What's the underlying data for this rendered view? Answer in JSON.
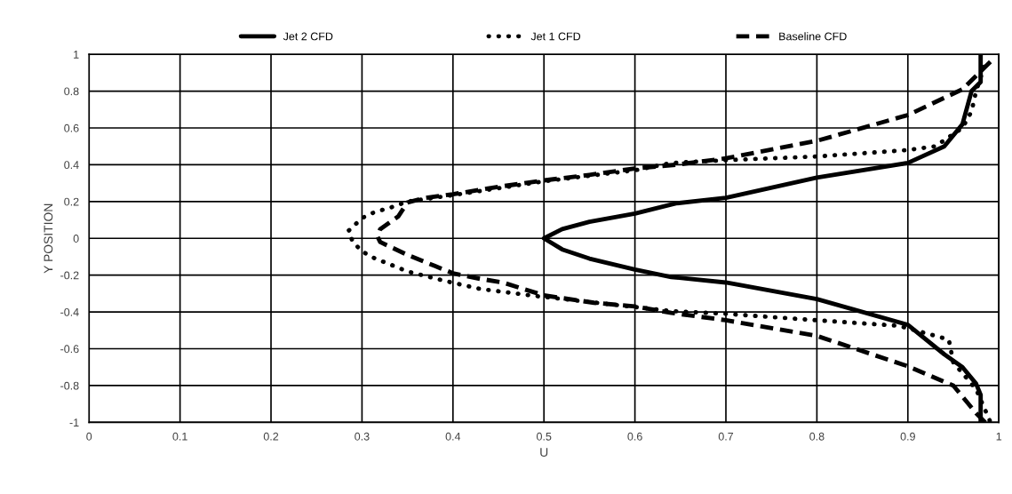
{
  "chart_data": {
    "type": "line",
    "xlabel": "U",
    "ylabel": "Y POSITION",
    "xlim": [
      0,
      1
    ],
    "ylim": [
      -1,
      1
    ],
    "xticks": [
      0,
      0.1,
      0.2,
      0.3,
      0.4,
      0.5,
      0.6,
      0.7,
      0.8,
      0.9,
      1
    ],
    "yticks": [
      -1,
      -0.8,
      -0.6,
      -0.4,
      -0.2,
      0,
      0.2,
      0.4,
      0.6,
      0.8,
      1
    ],
    "grid": true,
    "legend": "top",
    "marker": "none",
    "series": [
      {
        "name": "Jet 2 CFD",
        "color": "#000000",
        "line_style": "solid",
        "x": [
          0.98,
          0.98,
          0.975,
          0.96,
          0.94,
          0.9,
          0.8,
          0.7,
          0.64,
          0.6,
          0.55,
          0.52,
          0.5,
          0.52,
          0.55,
          0.6,
          0.645,
          0.7,
          0.8,
          0.9,
          0.94,
          0.96,
          0.97,
          0.98,
          0.98
        ],
        "values": [
          -1,
          -0.85,
          -0.79,
          -0.7,
          -0.63,
          -0.47,
          -0.33,
          -0.24,
          -0.21,
          -0.17,
          -0.11,
          -0.06,
          0,
          0.05,
          0.09,
          0.135,
          0.19,
          0.22,
          0.33,
          0.41,
          0.5,
          0.62,
          0.8,
          0.85,
          1
        ]
      },
      {
        "name": "Jet 1 CFD",
        "color": "#000000",
        "line_style": "dotted",
        "x": [
          0.99,
          0.975,
          0.95,
          0.945,
          0.89,
          0.8,
          0.7,
          0.64,
          0.485,
          0.47,
          0.43,
          0.39,
          0.35,
          0.31,
          0.3,
          0.29,
          0.285,
          0.3,
          0.315,
          0.33,
          0.35,
          0.4,
          0.5,
          0.6,
          0.64,
          0.7,
          0.8,
          0.9,
          0.93,
          0.96,
          0.97,
          0.975,
          0.985
        ],
        "values": [
          -0.99,
          -0.82,
          -0.675,
          -0.55,
          -0.475,
          -0.445,
          -0.41,
          -0.395,
          -0.31,
          -0.3,
          -0.275,
          -0.23,
          -0.18,
          -0.1,
          -0.07,
          -0.02,
          0.04,
          0.11,
          0.145,
          0.165,
          0.2,
          0.235,
          0.31,
          0.37,
          0.41,
          0.425,
          0.445,
          0.48,
          0.5,
          0.6,
          0.69,
          0.8,
          0.95
        ]
      },
      {
        "name": "Baseline CFD",
        "color": "#000000",
        "line_style": "dashed",
        "x": [
          0.985,
          0.975,
          0.95,
          0.9,
          0.8,
          0.7,
          0.64,
          0.6,
          0.555,
          0.5,
          0.455,
          0.43,
          0.4,
          0.38,
          0.35,
          0.32,
          0.317,
          0.32,
          0.34,
          0.35,
          0.37,
          0.4,
          0.45,
          0.5,
          0.55,
          0.6,
          0.645,
          0.7,
          0.8,
          0.9,
          0.96,
          0.995
        ],
        "values": [
          -1,
          -0.95,
          -0.8,
          -0.695,
          -0.53,
          -0.445,
          -0.405,
          -0.37,
          -0.35,
          -0.31,
          -0.24,
          -0.22,
          -0.19,
          -0.15,
          -0.09,
          -0.02,
          0.01,
          0.05,
          0.12,
          0.195,
          0.22,
          0.24,
          0.28,
          0.315,
          0.345,
          0.38,
          0.4,
          0.435,
          0.53,
          0.67,
          0.81,
          0.98
        ]
      }
    ]
  }
}
